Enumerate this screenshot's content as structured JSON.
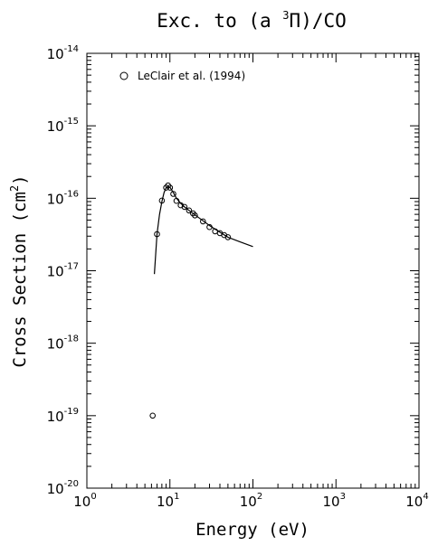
{
  "chart_data": {
    "type": "scatter",
    "title": {
      "prefix": "Exc. to (a ",
      "superscript": "3",
      "symbol": "Π",
      "suffix": ")/CO"
    },
    "xlabel": "Energy (eV)",
    "ylabel": "Cross Section (cm",
    "ylabel_superscript": "2",
    "ylabel_close": ")",
    "x_scale": "log",
    "y_scale": "log",
    "xlim": [
      1,
      10000
    ],
    "ylim": [
      1e-20,
      1e-14
    ],
    "x_ticks": [
      {
        "base": "10",
        "exp": "0"
      },
      {
        "base": "10",
        "exp": "1"
      },
      {
        "base": "10",
        "exp": "2"
      },
      {
        "base": "10",
        "exp": "3"
      },
      {
        "base": "10",
        "exp": "4"
      }
    ],
    "y_ticks": [
      {
        "base": "10",
        "exp": "-20"
      },
      {
        "base": "10",
        "exp": "-19"
      },
      {
        "base": "10",
        "exp": "-18"
      },
      {
        "base": "10",
        "exp": "-17"
      },
      {
        "base": "10",
        "exp": "-16"
      },
      {
        "base": "10",
        "exp": "-15"
      },
      {
        "base": "10",
        "exp": "-14"
      }
    ],
    "grid": false,
    "legend_position": "top-left",
    "series": [
      {
        "name": "LeClair et al. (1994)",
        "kind": "markers",
        "marker": "open-circle",
        "x": [
          6.2,
          7.0,
          8.0,
          9.0,
          9.5,
          10.0,
          11.0,
          12.0,
          13.5,
          15.0,
          17.0,
          19.0,
          20.0,
          25.0,
          30.0,
          35.0,
          40.0,
          45.0,
          50.0
        ],
        "y": [
          1e-19,
          3.2e-17,
          9.3e-17,
          1.4e-16,
          1.5e-16,
          1.4e-16,
          1.15e-16,
          9.2e-17,
          8e-17,
          7.6e-17,
          6.8e-17,
          6.2e-17,
          5.8e-17,
          4.8e-17,
          4e-17,
          3.5e-17,
          3.3e-17,
          3.1e-17,
          2.9e-17
        ]
      },
      {
        "kind": "line",
        "x": [
          6.5,
          7.0,
          7.5,
          8.0,
          8.5,
          9.0,
          9.5,
          10.0,
          11.0,
          12.0,
          13.5,
          15.0,
          17.0,
          20.0,
          25.0,
          30.0,
          40.0,
          50.0,
          70.0,
          100.0
        ],
        "y": [
          9e-18,
          3.2e-17,
          6e-17,
          9e-17,
          1.2e-16,
          1.4e-16,
          1.45e-16,
          1.42e-16,
          1.2e-16,
          1e-16,
          8.5e-17,
          7.6e-17,
          6.8e-17,
          5.9e-17,
          4.9e-17,
          4.2e-17,
          3.4e-17,
          2.9e-17,
          2.5e-17,
          2.15e-17
        ]
      }
    ]
  }
}
